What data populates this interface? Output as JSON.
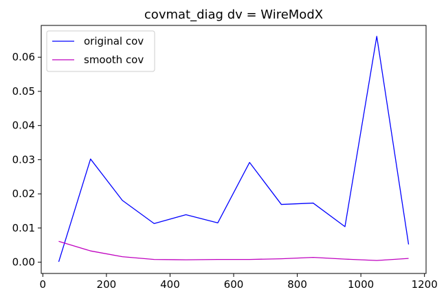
{
  "chart_data": {
    "type": "line",
    "title": "covmat_diag dv = WireModX",
    "xlabel": "",
    "ylabel": "",
    "xlim": [
      -5,
      1205
    ],
    "ylim": [
      -0.0033,
      0.0693
    ],
    "xticks": [
      0,
      200,
      400,
      600,
      800,
      1000,
      1200
    ],
    "xtick_labels": [
      "0",
      "200",
      "400",
      "600",
      "800",
      "1000",
      "1200"
    ],
    "yticks": [
      0.0,
      0.01,
      0.02,
      0.03,
      0.04,
      0.05,
      0.06
    ],
    "ytick_labels": [
      "0.00",
      "0.01",
      "0.02",
      "0.03",
      "0.04",
      "0.05",
      "0.06"
    ],
    "grid": false,
    "legend_position": "top-left",
    "series": [
      {
        "name": "original cov",
        "color": "#0000ff",
        "x": [
          50,
          150,
          250,
          350,
          450,
          550,
          650,
          750,
          850,
          950,
          1050,
          1150
        ],
        "y": [
          0.0001,
          0.0302,
          0.0181,
          0.0113,
          0.0139,
          0.0115,
          0.0292,
          0.0169,
          0.0173,
          0.0104,
          0.0661,
          0.0052
        ]
      },
      {
        "name": "smooth cov",
        "color": "#bf00bf",
        "x": [
          50,
          150,
          250,
          350,
          450,
          550,
          650,
          750,
          850,
          950,
          1050,
          1150
        ],
        "y": [
          0.0061,
          0.0033,
          0.0016,
          0.0008,
          0.0007,
          0.0008,
          0.0008,
          0.001,
          0.0014,
          0.0009,
          0.0005,
          0.0011
        ]
      }
    ]
  }
}
